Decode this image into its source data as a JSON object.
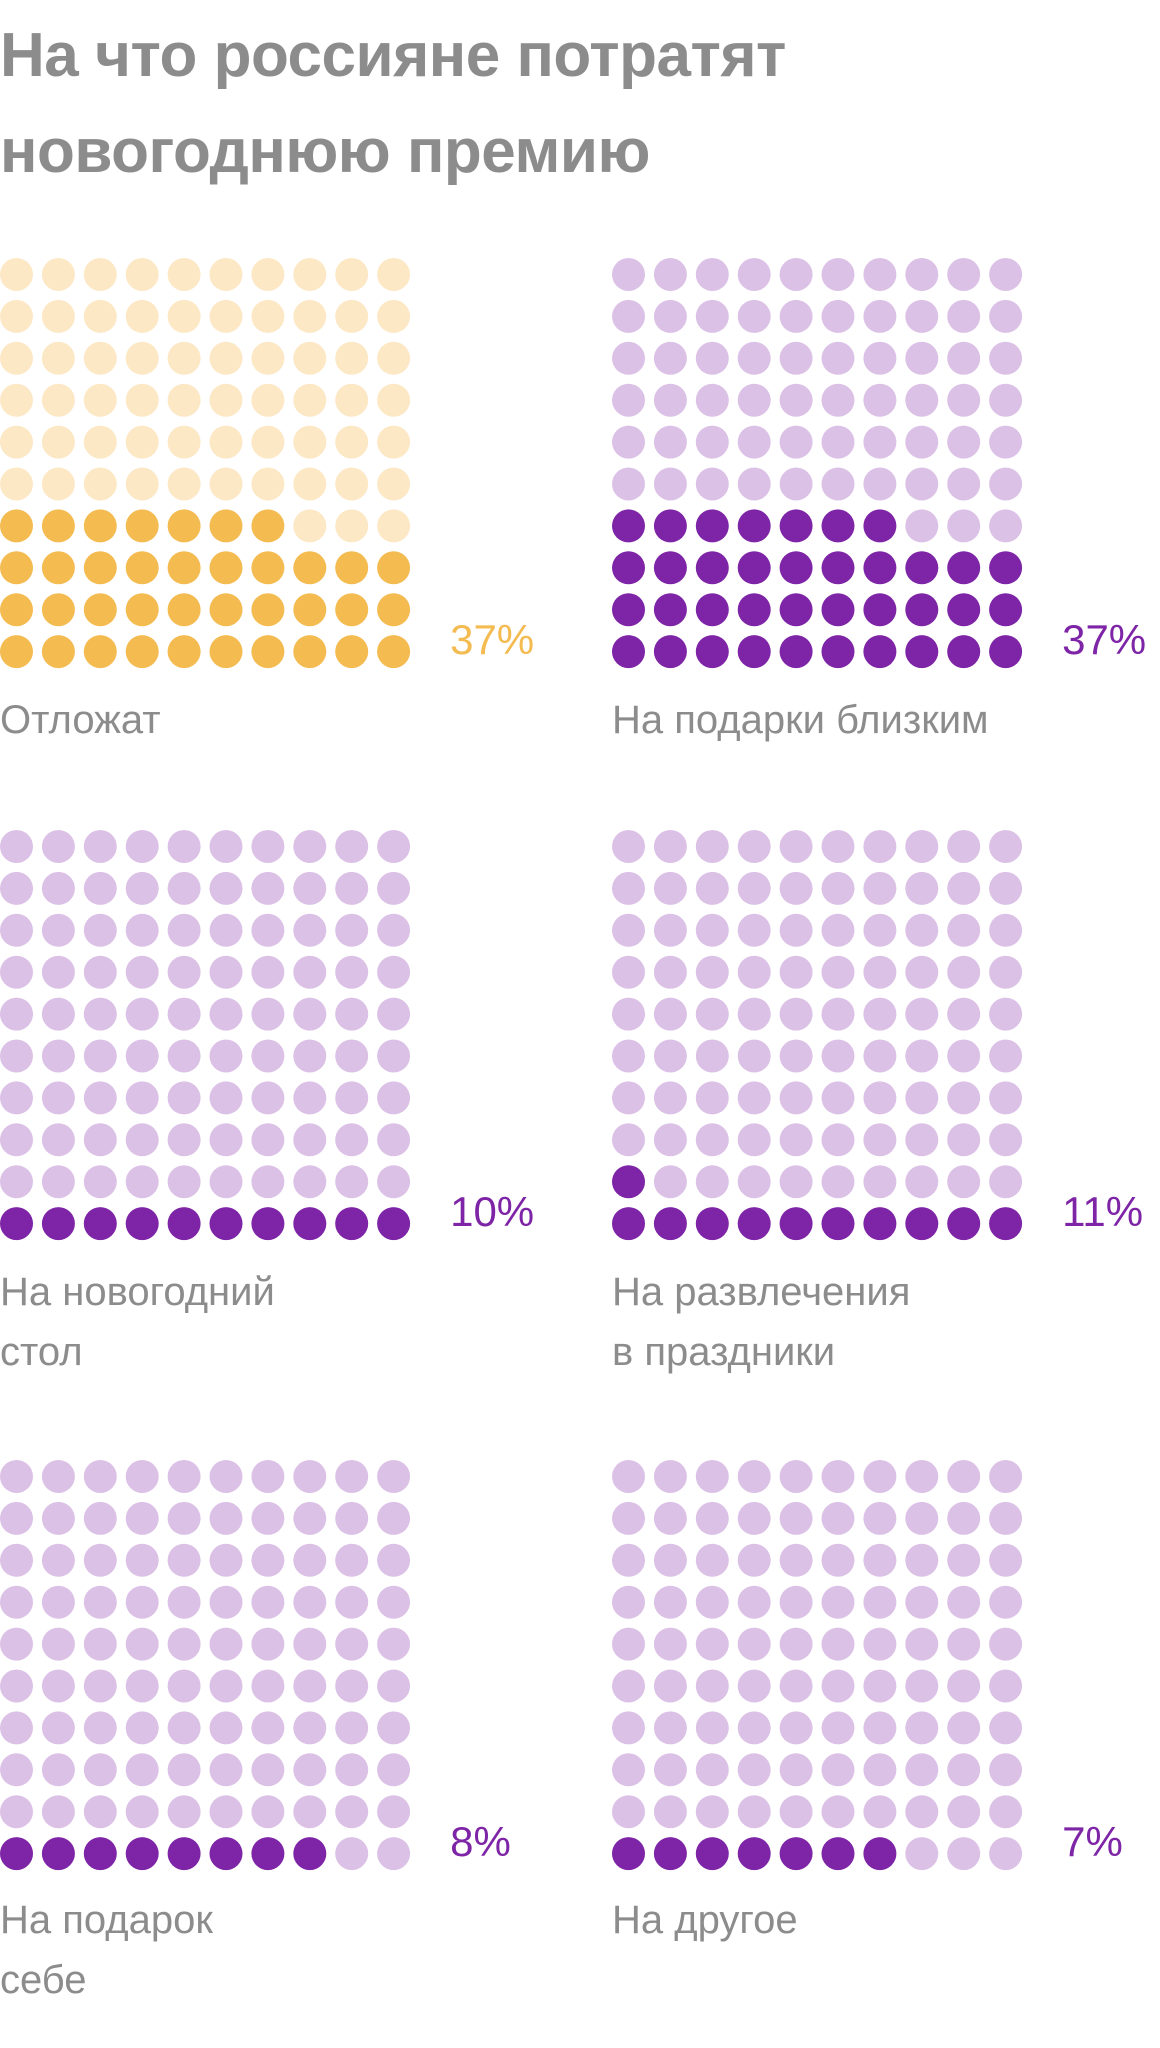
{
  "title": "На что россияне потратят новогоднюю премию",
  "colors": {
    "gold_filled": "#f4bb50",
    "gold_empty": "#fde8c6",
    "purple_filled": "#7e24a6",
    "purple_empty": "#dcc1e7",
    "label_text": "#8c8c8c"
  },
  "chart_data": [
    {
      "type": "waffle",
      "grid": [
        10,
        10
      ],
      "value": 37,
      "percent_label": "37%",
      "label": "Отложат",
      "color_scheme": "gold"
    },
    {
      "type": "waffle",
      "grid": [
        10,
        10
      ],
      "value": 37,
      "percent_label": "37%",
      "label": "На подарки близким",
      "color_scheme": "purple"
    },
    {
      "type": "waffle",
      "grid": [
        10,
        10
      ],
      "value": 10,
      "percent_label": "10%",
      "label": "На новогодний\nстол",
      "color_scheme": "purple"
    },
    {
      "type": "waffle",
      "grid": [
        10,
        10
      ],
      "value": 11,
      "percent_label": "11%",
      "label": "На развлечения\nв праздники",
      "color_scheme": "purple"
    },
    {
      "type": "waffle",
      "grid": [
        10,
        10
      ],
      "value": 8,
      "percent_label": "8%",
      "label": "На подарок\nсебе",
      "color_scheme": "purple"
    },
    {
      "type": "waffle",
      "grid": [
        10,
        10
      ],
      "value": 7,
      "percent_label": "7%",
      "label": "На другое",
      "color_scheme": "purple"
    }
  ]
}
